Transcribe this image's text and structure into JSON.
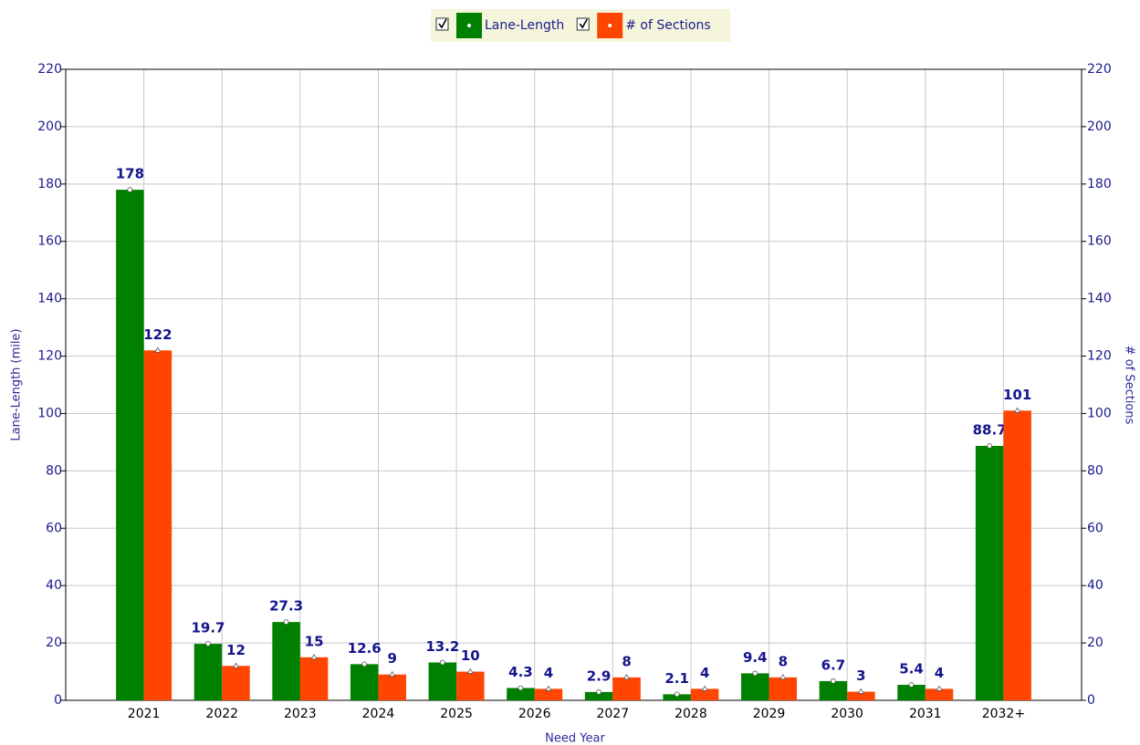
{
  "chart_data": {
    "type": "bar",
    "categories": [
      "2021",
      "2022",
      "2023",
      "2024",
      "2025",
      "2026",
      "2027",
      "2028",
      "2029",
      "2030",
      "2031",
      "2032+"
    ],
    "series": [
      {
        "name": "Lane-Length",
        "color": "#008000",
        "values": [
          178,
          19.7,
          27.3,
          12.6,
          13.2,
          4.3,
          2.9,
          2.1,
          9.4,
          6.7,
          5.4,
          88.7
        ]
      },
      {
        "name": "# of Sections",
        "color": "#ff4500",
        "axis": "y2",
        "values": [
          122,
          12,
          15,
          9,
          10,
          4,
          8,
          4,
          8,
          3,
          4,
          101
        ]
      }
    ],
    "x_label": "Need Year",
    "y_label": "Lane-Length (mile)",
    "y2_label": "# of Sections",
    "ylim": [
      0,
      220
    ],
    "yticks": [
      0,
      20,
      40,
      60,
      80,
      100,
      120,
      140,
      160,
      180,
      200,
      220
    ],
    "y2lim": [
      0,
      220
    ],
    "y2ticks": [
      0,
      20,
      40,
      60,
      80,
      100,
      120,
      140,
      160,
      180,
      200,
      220
    ],
    "grid": true,
    "legend": "top"
  }
}
